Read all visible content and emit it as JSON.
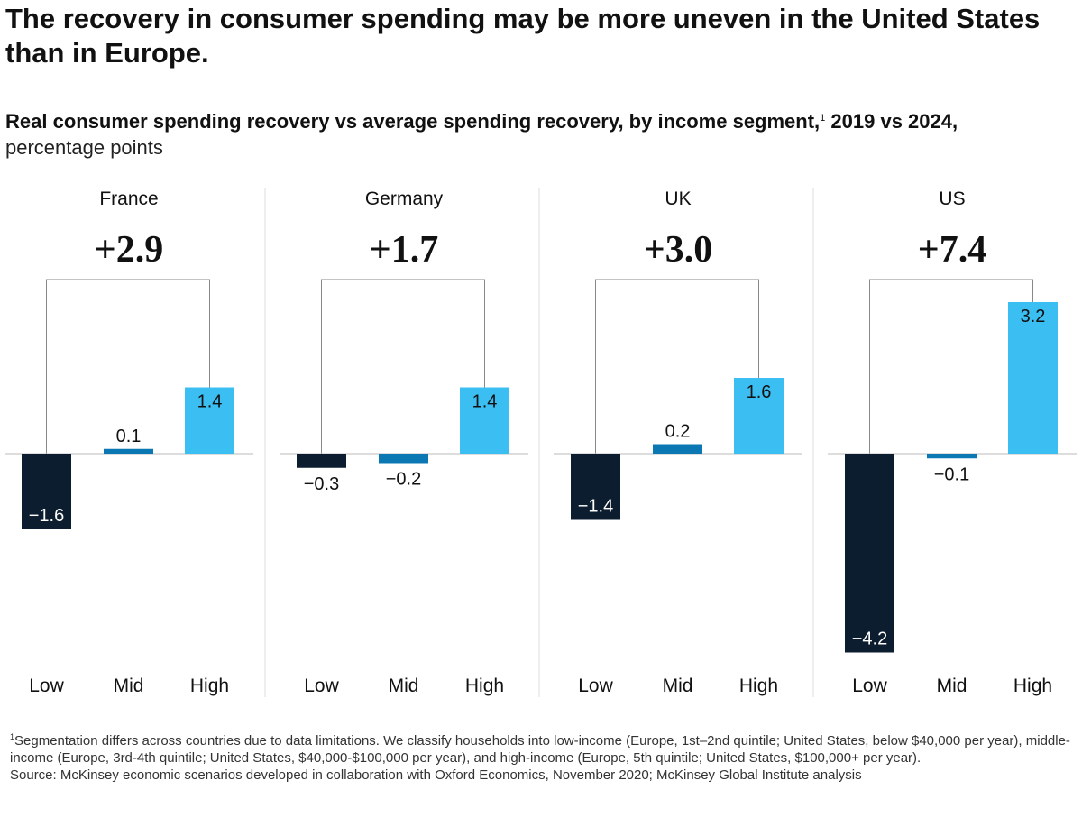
{
  "title": "The recovery in consumer spending may be more uneven in the United States than in Europe.",
  "subtitle": {
    "main": "Real consumer spending recovery vs average spending recovery, by income segment,",
    "footnote_marker": "1",
    "after_marker": " 2019 vs 2024,",
    "unit": "percentage points"
  },
  "colors": {
    "low": "#0b1d2e",
    "mid": "#0b78b3",
    "high": "#3bbff2",
    "axis": "#bbbbbb",
    "bracket": "#888888",
    "divider": "#dddddd"
  },
  "chart_data": {
    "type": "bar",
    "categories": [
      "Low",
      "Mid",
      "High"
    ],
    "ylim": [
      -4.2,
      3.2
    ],
    "panels": [
      {
        "name": "France",
        "gap": "+2.9",
        "values": [
          -1.6,
          0.1,
          1.4
        ],
        "labels": [
          "−1.6",
          "0.1",
          "1.4"
        ]
      },
      {
        "name": "Germany",
        "gap": "+1.7",
        "values": [
          -0.3,
          -0.2,
          1.4
        ],
        "labels": [
          "−0.3",
          "−0.2",
          "1.4"
        ]
      },
      {
        "name": "UK",
        "gap": "+3.0",
        "values": [
          -1.4,
          0.2,
          1.6
        ],
        "labels": [
          "−1.4",
          "0.2",
          "1.6"
        ]
      },
      {
        "name": "US",
        "gap": "+7.4",
        "values": [
          -4.2,
          -0.1,
          3.2
        ],
        "labels": [
          "−4.2",
          "−0.1",
          "3.2"
        ]
      }
    ]
  },
  "footnote": {
    "marker": "1",
    "text": "Segmentation differs across countries due to data limitations. We classify households into low-income (Europe, 1st–2nd quintile; United States, below $40,000 per year), middle-income (Europe, 3rd-4th quintile; United States, $40,000-$100,000 per year), and high-income (Europe, 5th quintile; United States, $100,000+ per year).",
    "source": "Source: McKinsey economic scenarios developed in collaboration with Oxford Economics, November 2020; McKinsey Global Institute analysis"
  }
}
